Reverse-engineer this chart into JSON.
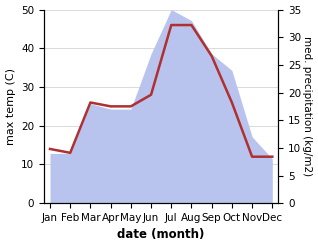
{
  "months": [
    "Jan",
    "Feb",
    "Mar",
    "Apr",
    "May",
    "Jun",
    "Jul",
    "Aug",
    "Sep",
    "Oct",
    "Nov",
    "Dec"
  ],
  "temperature": [
    14,
    13,
    26,
    25,
    25,
    28,
    46,
    46,
    38,
    26,
    12,
    12
  ],
  "precipitation": [
    9,
    9,
    18,
    17,
    17,
    27,
    35,
    33,
    27,
    24,
    12,
    8
  ],
  "temp_color": "#b03030",
  "precip_color": "#b8c4ee",
  "temp_ylim": [
    0,
    50
  ],
  "precip_ylim": [
    0,
    35
  ],
  "temp_yticks": [
    0,
    10,
    20,
    30,
    40,
    50
  ],
  "precip_yticks": [
    0,
    5,
    10,
    15,
    20,
    25,
    30,
    35
  ],
  "xlabel": "date (month)",
  "ylabel_left": "max temp (C)",
  "ylabel_right": "med. precipitation (kg/m2)",
  "label_fontsize": 8,
  "tick_fontsize": 7.5,
  "linewidth": 1.8,
  "background_color": "#ffffff"
}
